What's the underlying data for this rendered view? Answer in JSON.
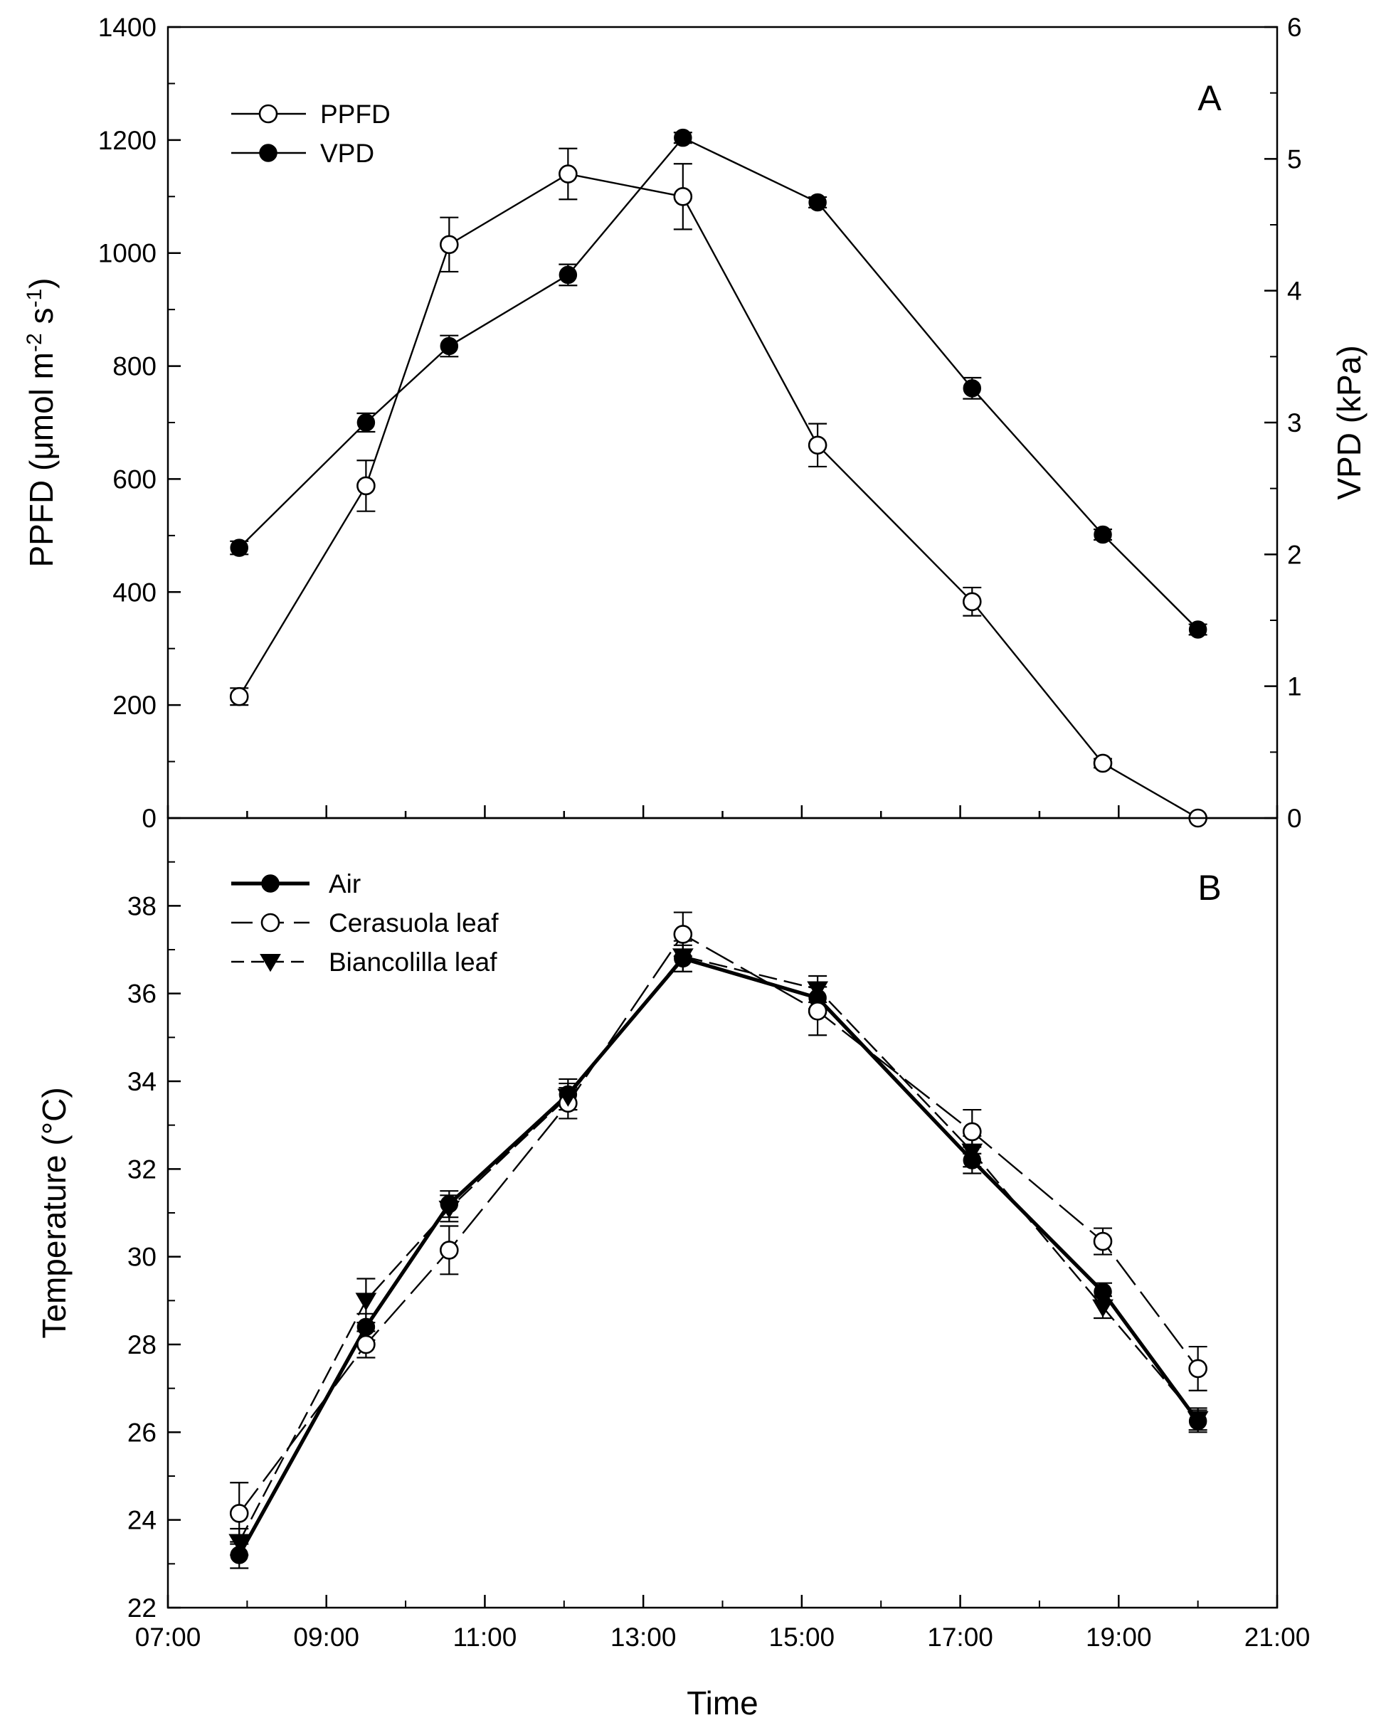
{
  "chart_data": [
    {
      "type": "line",
      "panel": "A",
      "x_unit": "hours",
      "x_ticks": [
        "07:00",
        "09:00",
        "11:00",
        "13:00",
        "15:00",
        "17:00",
        "19:00",
        "21:00"
      ],
      "xlim": [
        7,
        21
      ],
      "ylabel_left": "PPFD (μmol m⁻² s⁻¹)",
      "ylabel_left_parts": {
        "main": "PPFD (μmol m",
        "sup1": "-2",
        "mid": " s",
        "sup2": "-1",
        "end": ")"
      },
      "ylim_left": [
        0,
        1400
      ],
      "yticks_left": [
        "0",
        "200",
        "400",
        "600",
        "800",
        "1000",
        "1200",
        "1400"
      ],
      "ylabel_right": "VPD (kPa)",
      "ylim_right": [
        0,
        6
      ],
      "yticks_right": [
        "0",
        "1",
        "2",
        "3",
        "4",
        "5",
        "6"
      ],
      "legend": [
        "PPFD",
        "VPD"
      ],
      "legend_position": "top-left",
      "series": [
        {
          "name": "PPFD",
          "axis": "left",
          "marker": "open-circle",
          "line": "solid",
          "x": [
            7.9,
            9.5,
            10.55,
            12.05,
            13.5,
            15.2,
            17.15,
            18.8,
            20.0
          ],
          "y": [
            215,
            588,
            1015,
            1140,
            1100,
            660,
            383,
            97,
            0
          ],
          "err": [
            15,
            45,
            48,
            45,
            58,
            38,
            25,
            8,
            0
          ]
        },
        {
          "name": "VPD",
          "axis": "right",
          "marker": "filled-circle",
          "line": "solid",
          "x": [
            7.9,
            9.5,
            10.55,
            12.05,
            13.5,
            15.2,
            17.15,
            18.8,
            20.0
          ],
          "y": [
            2.05,
            3.0,
            3.58,
            4.12,
            5.16,
            4.67,
            3.26,
            2.15,
            1.43
          ],
          "err": [
            0.05,
            0.07,
            0.08,
            0.08,
            0.04,
            0.04,
            0.08,
            0.04,
            0.04
          ]
        }
      ]
    },
    {
      "type": "line",
      "panel": "B",
      "x_unit": "hours",
      "x_ticks": [
        "07:00",
        "09:00",
        "11:00",
        "13:00",
        "15:00",
        "17:00",
        "19:00",
        "21:00"
      ],
      "xlim": [
        7,
        21
      ],
      "xlabel": "Time",
      "ylabel": "Temperature (°C)",
      "ylim": [
        22,
        40
      ],
      "yticks": [
        "22",
        "24",
        "26",
        "28",
        "30",
        "32",
        "34",
        "36",
        "38"
      ],
      "legend": [
        "Air",
        "Cerasuola leaf",
        "Biancolilla leaf"
      ],
      "legend_position": "top-left",
      "series": [
        {
          "name": "Air",
          "marker": "filled-circle",
          "line": "solid-thick",
          "x": [
            7.9,
            9.5,
            10.55,
            12.05,
            13.5,
            15.2,
            17.15,
            18.8,
            20.0
          ],
          "y": [
            23.2,
            28.4,
            31.2,
            33.7,
            36.8,
            35.9,
            32.2,
            29.2,
            26.25
          ],
          "err": [
            0.3,
            0.3,
            0.3,
            0.35,
            0.3,
            0.25,
            0.3,
            0.2,
            0.25
          ]
        },
        {
          "name": "Cerasuola leaf",
          "marker": "open-circle",
          "line": "long-dash",
          "x": [
            7.9,
            9.5,
            10.55,
            12.05,
            13.5,
            15.2,
            17.15,
            18.8,
            20.0
          ],
          "y": [
            24.15,
            28.0,
            30.15,
            33.5,
            37.35,
            35.6,
            32.85,
            30.35,
            27.45
          ],
          "err": [
            0.7,
            0.3,
            0.55,
            0.35,
            0.5,
            0.55,
            0.5,
            0.3,
            0.5
          ]
        },
        {
          "name": "Biancolilla leaf",
          "marker": "filled-triangle-down",
          "line": "short-dash",
          "x": [
            7.9,
            9.5,
            10.55,
            12.05,
            13.5,
            15.2,
            17.15,
            18.8,
            20.0
          ],
          "y": [
            23.5,
            29.0,
            31.1,
            33.65,
            36.85,
            36.1,
            32.4,
            28.85,
            26.3
          ],
          "err": [
            0.3,
            0.5,
            0.3,
            0.3,
            0.35,
            0.3,
            0.35,
            0.25,
            0.25
          ]
        }
      ]
    }
  ]
}
